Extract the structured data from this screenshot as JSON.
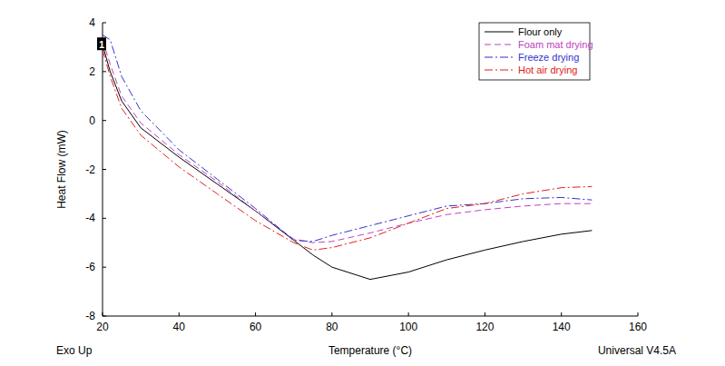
{
  "chart_data": {
    "type": "line",
    "xlabel": "Temperature (°C)",
    "ylabel": "Heat Flow (mW)",
    "annotations": [
      "Exo Up",
      "Universal V4.5A",
      "1"
    ],
    "x": [
      20,
      22,
      25,
      30,
      40,
      50,
      60,
      70,
      75,
      80,
      90,
      100,
      110,
      120,
      130,
      140,
      148
    ],
    "series": [
      {
        "name": "Flour only",
        "color": "#000000",
        "line_style": "solid",
        "values": [
          3.1,
          2.0,
          0.8,
          -0.3,
          -1.5,
          -2.6,
          -3.7,
          -4.9,
          -5.5,
          -6.0,
          -6.5,
          -6.2,
          -5.7,
          -5.3,
          -4.95,
          -4.65,
          -4.5
        ]
      },
      {
        "name": "Foam mat drying",
        "color": "#c040c0",
        "line_style": "dashed",
        "values": [
          3.3,
          2.3,
          1.0,
          -0.1,
          -1.4,
          -2.5,
          -3.7,
          -4.85,
          -5.0,
          -4.95,
          -4.6,
          -4.2,
          -3.85,
          -3.65,
          -3.5,
          -3.4,
          -3.4
        ]
      },
      {
        "name": "Freeze drying",
        "color": "#3333cc",
        "line_style": "dashdot",
        "values": [
          3.5,
          3.3,
          1.8,
          0.4,
          -1.2,
          -2.4,
          -3.6,
          -4.9,
          -4.95,
          -4.7,
          -4.3,
          -3.9,
          -3.5,
          -3.4,
          -3.2,
          -3.15,
          -3.25
        ]
      },
      {
        "name": "Hot air drying",
        "color": "#e02020",
        "line_style": "dashdot",
        "values": [
          2.9,
          1.8,
          0.5,
          -0.6,
          -1.9,
          -3.0,
          -4.1,
          -5.0,
          -5.3,
          -5.2,
          -4.8,
          -4.2,
          -3.6,
          -3.4,
          -3.0,
          -2.75,
          -2.7
        ]
      }
    ],
    "xlim": [
      20,
      160
    ],
    "xticks": [
      20,
      40,
      60,
      80,
      100,
      120,
      140,
      160
    ],
    "ylim": [
      -8,
      4
    ],
    "yticks": [
      -8,
      -6,
      -4,
      -2,
      0,
      2,
      4
    ],
    "grid": false,
    "legend": "upper right"
  }
}
